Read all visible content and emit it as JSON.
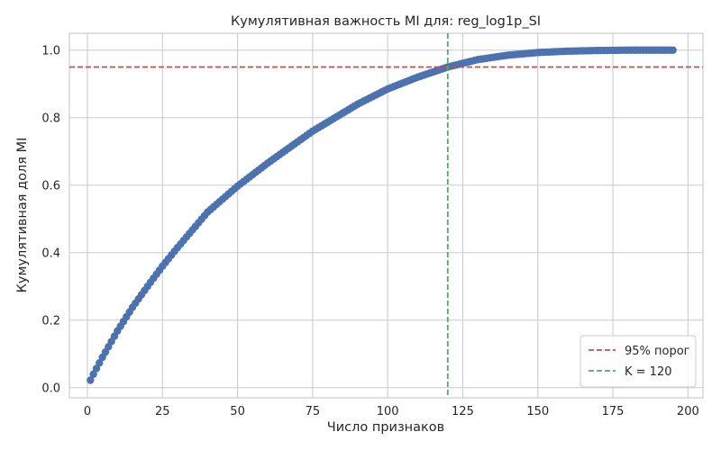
{
  "chart_data": {
    "type": "scatter",
    "title": "Кумулятивная важность MI для: reg_log1p_SI",
    "xlabel": "Число признаков",
    "ylabel": "Кумулятивная доля MI",
    "xlim": [
      -6,
      205
    ],
    "ylim": [
      -0.03,
      1.05
    ],
    "xticks": [
      0,
      25,
      50,
      75,
      100,
      125,
      150,
      175,
      200
    ],
    "yticks": [
      0.0,
      0.2,
      0.4,
      0.6,
      0.8,
      1.0
    ],
    "xtick_labels": [
      "0",
      "25",
      "50",
      "75",
      "100",
      "125",
      "150",
      "175",
      "200"
    ],
    "ytick_labels": [
      "0.0",
      "0.2",
      "0.4",
      "0.6",
      "0.8",
      "1.0"
    ],
    "grid": true,
    "legend_position": "bottom-right",
    "series": [
      {
        "kind": "points",
        "color": "#4c72b0",
        "x_range": [
          1,
          195
        ],
        "x_step": 1,
        "samples": [
          [
            1,
            0.022
          ],
          [
            2,
            0.04
          ],
          [
            5,
            0.09
          ],
          [
            10,
            0.168
          ],
          [
            15,
            0.238
          ],
          [
            20,
            0.3
          ],
          [
            25,
            0.36
          ],
          [
            30,
            0.415
          ],
          [
            40,
            0.52
          ],
          [
            50,
            0.597
          ],
          [
            60,
            0.665
          ],
          [
            75,
            0.76
          ],
          [
            90,
            0.84
          ],
          [
            100,
            0.885
          ],
          [
            110,
            0.92
          ],
          [
            120,
            0.95
          ],
          [
            130,
            0.972
          ],
          [
            140,
            0.985
          ],
          [
            150,
            0.993
          ],
          [
            160,
            0.997
          ],
          [
            170,
            0.999
          ],
          [
            180,
            1.0
          ],
          [
            195,
            1.0
          ]
        ]
      },
      {
        "kind": "hline",
        "name": "95% порог",
        "y": 0.95,
        "color": "#c44e52",
        "dash": "dashed"
      },
      {
        "kind": "vline",
        "name": "K = 120",
        "x": 120,
        "color": "#55a868",
        "dash": "dashed"
      }
    ]
  }
}
